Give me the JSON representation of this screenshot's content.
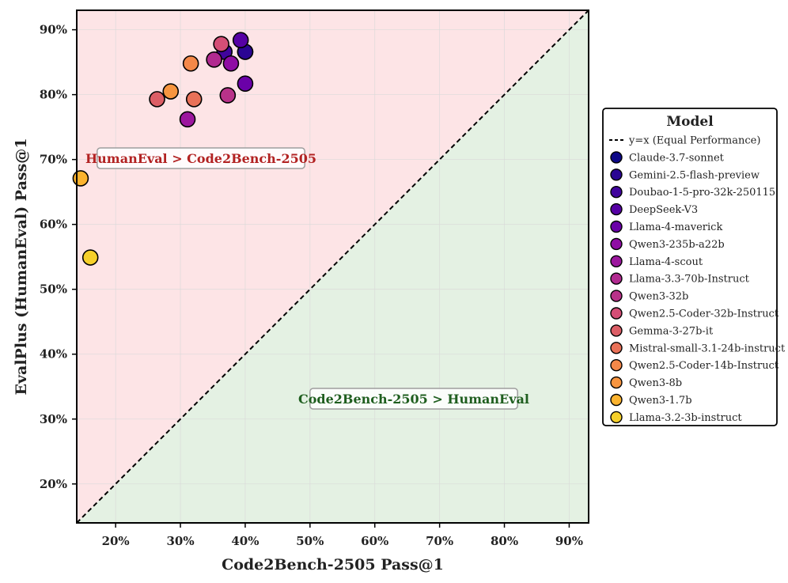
{
  "chart_data": {
    "type": "scatter",
    "xlabel": "Code2Bench-2505 Pass@1",
    "ylabel": "EvalPlus (HumanEval) Pass@1",
    "xlim": [
      14,
      93
    ],
    "ylim": [
      14,
      93
    ],
    "x_ticks": [
      20,
      30,
      40,
      50,
      60,
      70,
      80,
      90
    ],
    "y_ticks": [
      20,
      30,
      40,
      50,
      60,
      70,
      80,
      90
    ],
    "x_tick_labels": [
      "20%",
      "30%",
      "40%",
      "50%",
      "60%",
      "70%",
      "80%",
      "90%"
    ],
    "y_tick_labels": [
      "20%",
      "30%",
      "40%",
      "50%",
      "60%",
      "70%",
      "80%",
      "90%"
    ],
    "grid": true,
    "diagonal_label": "y=x (Equal Performance)",
    "region_upper_label": "HumanEval > Code2Bench-2505",
    "region_lower_label": "Code2Bench-2505 > HumanEval",
    "legend_title": "Model",
    "legend_position": "right",
    "colors": {
      "upper_region": "#fde4e6",
      "lower_region": "#e4f1e3",
      "upper_label": "#b22222",
      "lower_label": "#1f5e1f"
    },
    "series": [
      {
        "name": "Claude-3.7-sonnet",
        "color": "#0d0887",
        "x": 40.0,
        "y": 86.6
      },
      {
        "name": "Gemini-2.5-flash-preview",
        "color": "#2a0593",
        "x": 40.0,
        "y": 86.6
      },
      {
        "name": "Doubao-1-5-pro-32k-250115",
        "color": "#41049d",
        "x": 36.8,
        "y": 86.6
      },
      {
        "name": "DeepSeek-V3",
        "color": "#5601a4",
        "x": 39.3,
        "y": 88.4
      },
      {
        "name": "Llama-4-maverick",
        "color": "#6a00a8",
        "x": 40.0,
        "y": 81.7
      },
      {
        "name": "Qwen3-235b-a22b",
        "color": "#8f0da4",
        "x": 37.8,
        "y": 84.8
      },
      {
        "name": "Llama-4-scout",
        "color": "#9c179e",
        "x": 31.1,
        "y": 76.2
      },
      {
        "name": "Llama-3.3-70b-Instruct",
        "color": "#b12a90",
        "x": 35.2,
        "y": 85.4
      },
      {
        "name": "Qwen3-32b",
        "color": "#b83289",
        "x": 37.3,
        "y": 79.9
      },
      {
        "name": "Qwen2.5-Coder-32b-Instruct",
        "color": "#d44e76",
        "x": 36.3,
        "y": 87.8
      },
      {
        "name": "Gemma-3-27b-it",
        "color": "#dc5e66",
        "x": 26.4,
        "y": 79.3
      },
      {
        "name": "Mistral-small-3.1-24b-instruct",
        "color": "#e97158",
        "x": 32.1,
        "y": 79.3
      },
      {
        "name": "Qwen2.5-Coder-14b-Instruct",
        "color": "#f48849",
        "x": 31.6,
        "y": 84.8
      },
      {
        "name": "Qwen3-8b",
        "color": "#f89540",
        "x": 28.5,
        "y": 80.5
      },
      {
        "name": "Qwen3-1.7b",
        "color": "#fbb32f",
        "x": 14.6,
        "y": 67.1
      },
      {
        "name": "Llama-3.2-3b-instruct",
        "color": "#f6d02b",
        "x": 16.1,
        "y": 54.9
      }
    ]
  }
}
